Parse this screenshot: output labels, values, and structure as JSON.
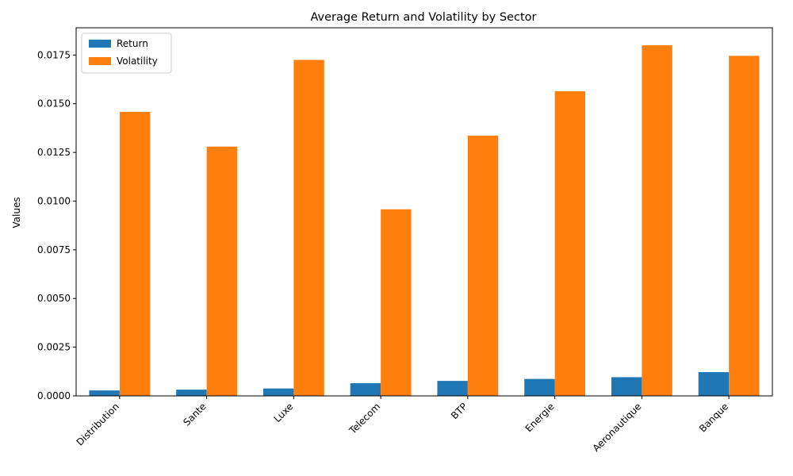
{
  "chart_data": {
    "type": "bar",
    "title": "Average Return and Volatility by Sector",
    "xlabel": "",
    "ylabel": "Values",
    "categories": [
      "Distribution",
      "Sante",
      "Luxe",
      "Telecom",
      "BTP",
      "Energie",
      "Aeronautique",
      "Banque"
    ],
    "series": [
      {
        "name": "Return",
        "color": "#1f77b4",
        "values": [
          0.00028,
          0.00032,
          0.00038,
          0.00065,
          0.00077,
          0.00087,
          0.00096,
          0.00122
        ]
      },
      {
        "name": "Volatility",
        "color": "#ff7f0e",
        "values": [
          0.01458,
          0.0128,
          0.01725,
          0.00958,
          0.01336,
          0.01564,
          0.018,
          0.01746
        ]
      }
    ],
    "ylim": [
      0,
      0.0189
    ],
    "yticks": [
      0.0,
      0.0025,
      0.005,
      0.0075,
      0.01,
      0.0125,
      0.015,
      0.0175
    ],
    "ytick_labels": [
      "0.0000",
      "0.0025",
      "0.0050",
      "0.0075",
      "0.0100",
      "0.0125",
      "0.0150",
      "0.0175"
    ],
    "grid": false,
    "legend_position": "top-left"
  }
}
